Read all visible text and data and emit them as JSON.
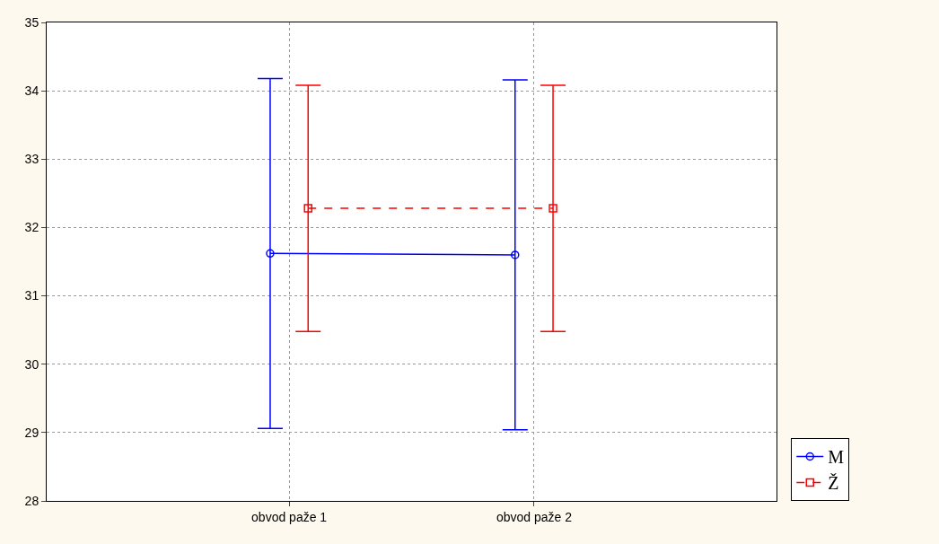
{
  "chart_data": {
    "type": "line",
    "categories": [
      "obvod paže 1",
      "obvod paže 2"
    ],
    "ylim": [
      28,
      35
    ],
    "yticks": [
      28,
      29,
      30,
      31,
      32,
      33,
      34,
      35
    ],
    "grid": true,
    "legend": "bottom right",
    "series": [
      {
        "name": "M",
        "color": "#0000ff",
        "values": [
          31.62,
          31.6
        ],
        "errors": [
          2.56,
          2.56
        ],
        "marker": "circle",
        "line_style": "solid"
      },
      {
        "name": "Ž",
        "color": "#ff0000",
        "values": [
          32.28,
          32.28
        ],
        "errors": [
          1.8,
          1.8
        ],
        "marker": "square",
        "line_style": "dashed"
      }
    ]
  }
}
